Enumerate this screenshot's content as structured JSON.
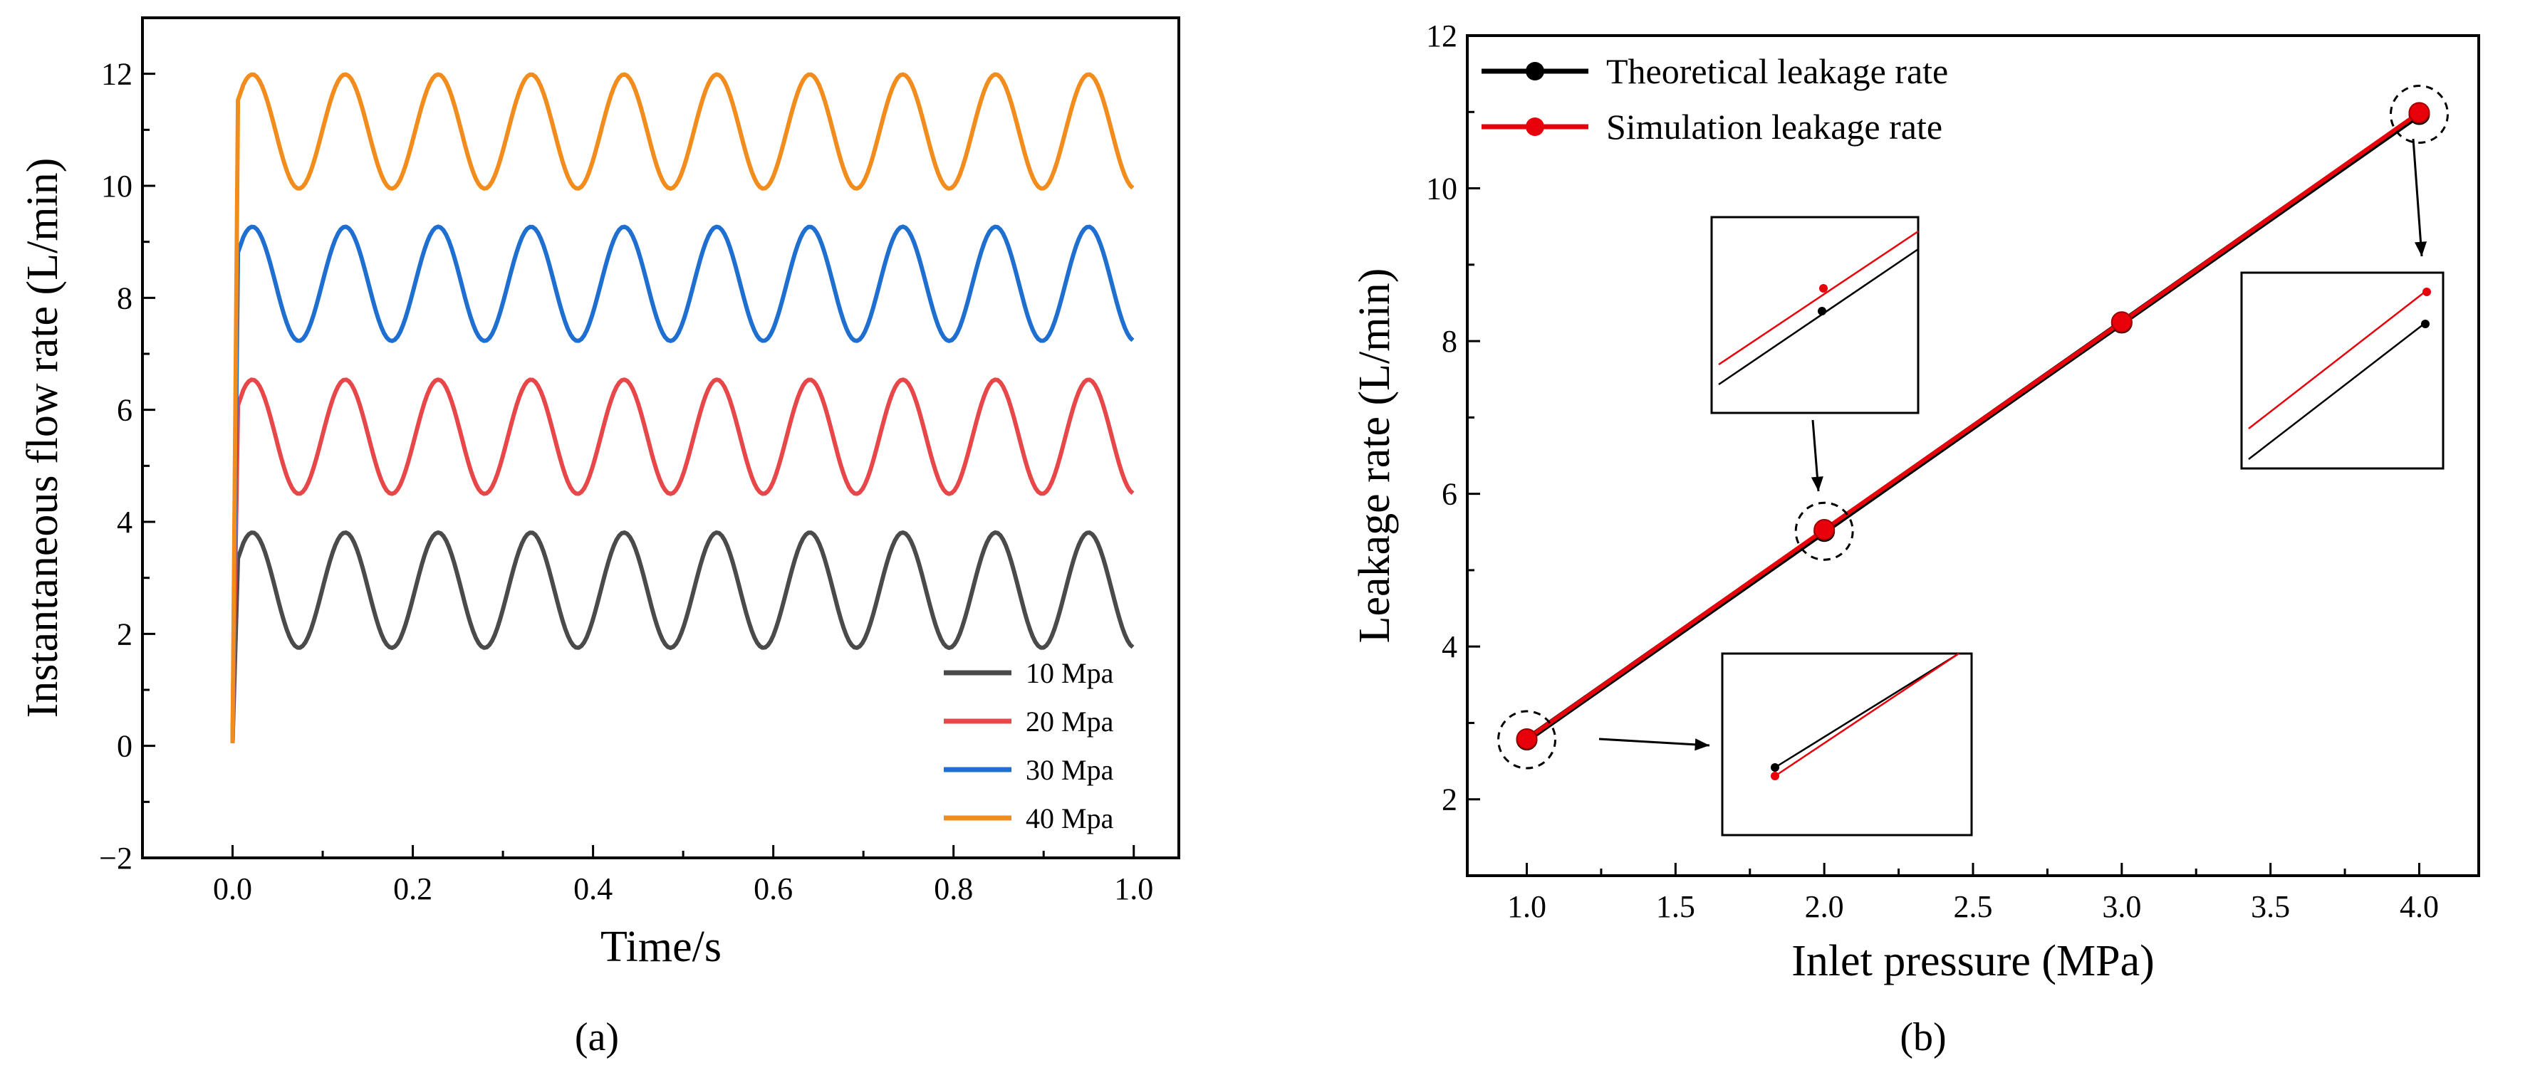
{
  "chart_data": [
    {
      "panel": "a",
      "panel_label": "(a)",
      "type": "line",
      "xlabel": "Time/s",
      "ylabel": "Instantaneous flow rate (L/min)",
      "xlim": [
        -0.1,
        1.05
      ],
      "ylim": [
        -2,
        13
      ],
      "xticks": [
        "0.0",
        "0.2",
        "0.4",
        "0.6",
        "0.8",
        "1.0"
      ],
      "yticks": [
        "−2",
        "0",
        "2",
        "4",
        "6",
        "8",
        "10",
        "12"
      ],
      "legend_position": "bottom-right",
      "period": 0.1031,
      "end_x": 1.0,
      "series": [
        {
          "name": "10 Mpa",
          "color": "#4a4a4a",
          "mean": 2.78,
          "amplitude": 1.03
        },
        {
          "name": "20 Mpa",
          "color": "#e8474a",
          "mean": 5.52,
          "amplitude": 1.02
        },
        {
          "name": "30 Mpa",
          "color": "#1f6fd1",
          "mean": 8.25,
          "amplitude": 1.02
        },
        {
          "name": "40 Mpa",
          "color": "#f28c1c",
          "mean": 10.97,
          "amplitude": 1.02
        }
      ]
    },
    {
      "panel": "b",
      "panel_label": "(b)",
      "type": "line",
      "xlabel": "Inlet pressure (MPa)",
      "ylabel": "Leakage rate (L/min)",
      "xlim": [
        0.8,
        4.2
      ],
      "ylim": [
        1,
        12
      ],
      "xticks": [
        "1.0",
        "1.5",
        "2.0",
        "2.5",
        "3.0",
        "3.5",
        "4.0"
      ],
      "yticks": [
        "2",
        "4",
        "6",
        "8",
        "10",
        "12"
      ],
      "legend_position": "top-left",
      "x": [
        1,
        2,
        3,
        4
      ],
      "series": [
        {
          "name": "Theoretical leakage rate",
          "color": "#000000",
          "values": [
            2.78,
            5.51,
            8.24,
            10.97
          ]
        },
        {
          "name": "Simulation leakage rate",
          "color": "#e8000b",
          "values": [
            2.79,
            5.53,
            8.25,
            10.99
          ]
        }
      ]
    }
  ]
}
